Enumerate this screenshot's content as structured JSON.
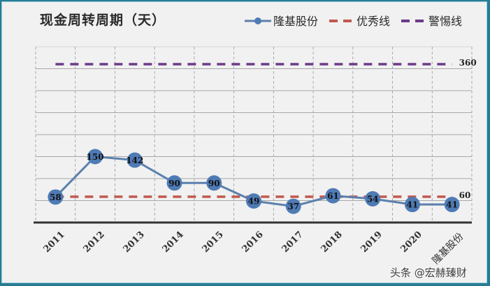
{
  "colors": {
    "series": "#4f7bb5",
    "series_line": "#5b80ad",
    "excellent": "#c0594f",
    "warning": "#6b3a8a",
    "grid": "#a8a8a8",
    "axis": "#333333",
    "background": "#f1f1f1",
    "border": "#2a7a93"
  },
  "chart_data": {
    "type": "line",
    "title": "现金周转周期（天）",
    "xlabel": "",
    "ylabel": "",
    "categories": [
      "2011",
      "2012",
      "2013",
      "2014",
      "2015",
      "2016",
      "2017",
      "2018",
      "2019",
      "2020",
      "隆基股份"
    ],
    "series": [
      {
        "name": "隆基股份",
        "values": [
          58,
          150,
          142,
          90,
          90,
          49,
          37,
          61,
          54,
          41,
          41
        ],
        "style": "line-with-circle-markers"
      },
      {
        "name": "优秀线",
        "values": [
          60,
          60,
          60,
          60,
          60,
          60,
          60,
          60,
          60,
          60,
          60
        ],
        "style": "dashed",
        "end_label": "60"
      },
      {
        "name": "警惕线",
        "values": [
          360,
          360,
          360,
          360,
          360,
          360,
          360,
          360,
          360,
          360,
          360
        ],
        "style": "dashed",
        "end_label": "360"
      }
    ],
    "ylim": [
      0,
      400
    ],
    "grid": true,
    "legend_position": "top-right",
    "y_axis_ticks_visible": false
  },
  "legend": [
    {
      "label": "隆基股份",
      "icon": "line-circle-marker"
    },
    {
      "label": "优秀线",
      "icon": "dashed-line-red"
    },
    {
      "label": "警惕线",
      "icon": "dashed-line-purple"
    }
  ],
  "watermark": "头条 @宏赫臻财"
}
